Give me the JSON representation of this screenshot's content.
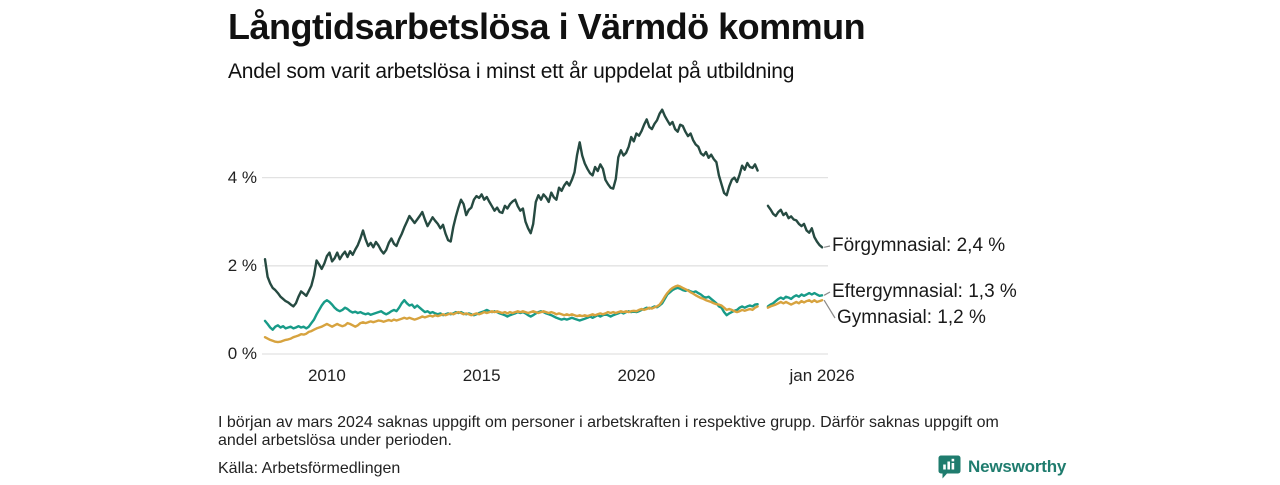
{
  "title": "Långtidsarbetslösa i Värmdö kommun",
  "subtitle": "Andel som varit arbetslösa i minst ett år uppdelat på utbildning",
  "footnote_line1": "I början av mars 2024 saknas uppgift om personer i arbetskraften i respektive grupp. Därför saknas uppgift om",
  "footnote_line2": "andel arbetslösa under perioden.",
  "source": "Källa: Arbetsförmedlingen",
  "brand": {
    "name": "Newsworthy",
    "color": "#1f7c6e",
    "icon": "newsworthy-speech-bubble-bar-chart-icon"
  },
  "chart_data": {
    "type": "line",
    "title": "Långtidsarbetslösa i Värmdö kommun",
    "subtitle": "Andel som varit arbetslösa i minst ett år uppdelat på utbildning",
    "unit": "%",
    "x_start_year": 2008.0,
    "x_step_years": 0.0833333,
    "x_end_year": 2026.0,
    "xlim": [
      2008.0,
      2026.2
    ],
    "ylim": [
      0,
      5.8
    ],
    "grid": true,
    "gridline_color": "#e2e2e2",
    "connector_color": "#8a8a8a",
    "xticks": [
      {
        "year": 2010,
        "label": "2010"
      },
      {
        "year": 2015,
        "label": "2015"
      },
      {
        "year": 2020,
        "label": "2020"
      },
      {
        "year": 2026,
        "label": "jan 2026"
      }
    ],
    "yticks": [
      {
        "value": 0,
        "label": "0 %"
      },
      {
        "value": 2,
        "label": "2 %"
      },
      {
        "value": 4,
        "label": "4 %"
      }
    ],
    "data_gap_note": "values missing Jan–Mar 2024 (nulls)",
    "series": [
      {
        "name": "Förgymnasial",
        "end_label": "Förgymnasial: 2,4 %",
        "end_value_text": "2,4 %",
        "color": "#264a41",
        "values": [
          2.15,
          1.75,
          1.6,
          1.5,
          1.45,
          1.38,
          1.3,
          1.25,
          1.2,
          1.17,
          1.12,
          1.08,
          1.15,
          1.3,
          1.42,
          1.37,
          1.32,
          1.43,
          1.55,
          1.78,
          2.12,
          2.03,
          1.93,
          2.05,
          2.22,
          2.3,
          2.1,
          2.17,
          2.3,
          2.15,
          2.25,
          2.32,
          2.2,
          2.33,
          2.25,
          2.37,
          2.47,
          2.62,
          2.8,
          2.6,
          2.45,
          2.52,
          2.42,
          2.54,
          2.46,
          2.35,
          2.28,
          2.36,
          2.52,
          2.62,
          2.5,
          2.45,
          2.6,
          2.72,
          2.87,
          3.0,
          3.13,
          3.05,
          2.97,
          3.05,
          3.13,
          3.22,
          3.05,
          2.9,
          3.0,
          3.1,
          3.02,
          2.95,
          2.85,
          2.93,
          2.73,
          2.58,
          2.55,
          2.88,
          3.12,
          3.32,
          3.5,
          3.4,
          3.15,
          3.27,
          3.32,
          3.5,
          3.58,
          3.54,
          3.62,
          3.5,
          3.56,
          3.45,
          3.35,
          3.25,
          3.32,
          3.22,
          3.2,
          3.36,
          3.3,
          3.4,
          3.46,
          3.5,
          3.35,
          3.25,
          3.3,
          3.0,
          2.85,
          2.74,
          2.95,
          3.45,
          3.6,
          3.5,
          3.62,
          3.55,
          3.45,
          3.66,
          3.55,
          3.5,
          3.77,
          3.7,
          3.82,
          3.9,
          3.82,
          3.95,
          4.12,
          4.52,
          4.8,
          4.5,
          4.32,
          4.2,
          4.1,
          4.05,
          4.24,
          4.15,
          4.3,
          4.2,
          3.95,
          3.85,
          3.77,
          3.75,
          3.97,
          4.46,
          4.62,
          4.5,
          4.56,
          4.7,
          4.92,
          4.82,
          5.0,
          4.95,
          5.06,
          5.2,
          5.32,
          5.15,
          5.1,
          5.22,
          5.3,
          5.45,
          5.54,
          5.4,
          5.3,
          5.2,
          5.26,
          5.1,
          5.04,
          5.2,
          5.17,
          5.04,
          4.94,
          5.0,
          4.85,
          4.75,
          4.7,
          4.55,
          4.5,
          4.58,
          4.45,
          4.52,
          4.42,
          4.35,
          4.05,
          3.85,
          3.65,
          3.6,
          3.8,
          3.95,
          4.0,
          3.9,
          4.07,
          4.27,
          4.18,
          4.33,
          4.24,
          4.22,
          4.3,
          4.16,
          null,
          null,
          null,
          3.36,
          3.28,
          3.18,
          3.13,
          3.22,
          3.27,
          3.15,
          3.2,
          3.08,
          3.12,
          3.05,
          3.03,
          2.95,
          2.9,
          2.95,
          2.8,
          2.75,
          2.85,
          2.65,
          2.55,
          2.47,
          2.42
        ]
      },
      {
        "name": "Eftergymnasial",
        "end_label": "Eftergymnasial: 1,3 %",
        "end_value_text": "1,3 %",
        "color": "#189b88",
        "values": [
          0.75,
          0.68,
          0.6,
          0.55,
          0.62,
          0.65,
          0.6,
          0.63,
          0.58,
          0.6,
          0.62,
          0.58,
          0.6,
          0.63,
          0.6,
          0.62,
          0.58,
          0.62,
          0.7,
          0.78,
          0.9,
          1.0,
          1.1,
          1.18,
          1.22,
          1.18,
          1.12,
          1.05,
          1.0,
          0.97,
          1.0,
          1.05,
          1.02,
          0.97,
          0.94,
          0.96,
          0.93,
          0.95,
          0.92,
          0.9,
          0.92,
          0.89,
          0.91,
          0.93,
          0.95,
          0.97,
          0.93,
          0.9,
          0.93,
          0.97,
          1.0,
          0.97,
          1.05,
          1.15,
          1.22,
          1.15,
          1.1,
          1.12,
          1.05,
          1.1,
          1.05,
          1.0,
          0.95,
          0.97,
          0.93,
          0.95,
          0.92,
          0.9,
          0.92,
          0.88,
          0.9,
          0.92,
          0.9,
          0.92,
          0.95,
          0.93,
          0.95,
          0.92,
          0.9,
          0.92,
          0.9,
          0.88,
          0.9,
          0.93,
          0.95,
          0.97,
          1.0,
          0.97,
          0.95,
          0.97,
          0.95,
          0.92,
          0.9,
          0.88,
          0.85,
          0.88,
          0.9,
          0.92,
          0.95,
          0.93,
          0.95,
          0.92,
          0.88,
          0.85,
          0.88,
          0.92,
          0.95,
          0.97,
          0.95,
          0.92,
          0.9,
          0.88,
          0.85,
          0.82,
          0.8,
          0.78,
          0.8,
          0.78,
          0.8,
          0.82,
          0.8,
          0.78,
          0.76,
          0.78,
          0.8,
          0.82,
          0.85,
          0.82,
          0.85,
          0.88,
          0.85,
          0.88,
          0.9,
          0.88,
          0.85,
          0.88,
          0.9,
          0.92,
          0.95,
          0.92,
          0.95,
          0.97,
          0.95,
          0.97,
          0.95,
          0.97,
          1.0,
          1.02,
          1.05,
          1.03,
          1.05,
          1.08,
          1.06,
          1.1,
          1.15,
          1.25,
          1.35,
          1.4,
          1.45,
          1.48,
          1.5,
          1.48,
          1.45,
          1.43,
          1.45,
          1.42,
          1.4,
          1.42,
          1.38,
          1.35,
          1.3,
          1.28,
          1.3,
          1.25,
          1.2,
          1.15,
          1.08,
          1.05,
          0.95,
          0.88,
          0.92,
          0.95,
          0.98,
          1.0,
          1.05,
          1.08,
          1.05,
          1.08,
          1.1,
          1.08,
          1.12,
          1.13,
          null,
          null,
          null,
          1.08,
          1.12,
          1.15,
          1.2,
          1.25,
          1.28,
          1.25,
          1.3,
          1.28,
          1.25,
          1.3,
          1.33,
          1.3,
          1.35,
          1.32,
          1.35,
          1.38,
          1.35,
          1.38,
          1.35,
          1.32,
          1.33
        ]
      },
      {
        "name": "Gymnasial",
        "end_label": "Gymnasial: 1,2 %",
        "end_value_text": "1,2 %",
        "color": "#d7a33f",
        "values": [
          0.38,
          0.35,
          0.32,
          0.3,
          0.28,
          0.27,
          0.28,
          0.3,
          0.32,
          0.33,
          0.35,
          0.38,
          0.4,
          0.42,
          0.45,
          0.44,
          0.46,
          0.5,
          0.52,
          0.55,
          0.58,
          0.6,
          0.62,
          0.65,
          0.68,
          0.65,
          0.62,
          0.65,
          0.68,
          0.65,
          0.63,
          0.65,
          0.7,
          0.68,
          0.65,
          0.62,
          0.65,
          0.7,
          0.72,
          0.7,
          0.72,
          0.74,
          0.72,
          0.74,
          0.76,
          0.75,
          0.73,
          0.75,
          0.77,
          0.75,
          0.78,
          0.76,
          0.78,
          0.8,
          0.82,
          0.8,
          0.82,
          0.8,
          0.78,
          0.8,
          0.82,
          0.85,
          0.83,
          0.85,
          0.87,
          0.85,
          0.88,
          0.86,
          0.88,
          0.9,
          0.88,
          0.9,
          0.92,
          0.9,
          0.93,
          0.95,
          0.93,
          0.9,
          0.92,
          0.9,
          0.88,
          0.9,
          0.92,
          0.9,
          0.92,
          0.95,
          0.93,
          0.95,
          0.97,
          0.95,
          0.97,
          0.95,
          0.93,
          0.95,
          0.92,
          0.95,
          0.93,
          0.95,
          0.97,
          0.95,
          0.97,
          0.95,
          0.93,
          0.95,
          0.97,
          0.95,
          0.93,
          0.95,
          0.97,
          0.95,
          0.93,
          0.95,
          0.93,
          0.9,
          0.92,
          0.9,
          0.88,
          0.9,
          0.88,
          0.9,
          0.88,
          0.86,
          0.88,
          0.86,
          0.88,
          0.86,
          0.88,
          0.9,
          0.88,
          0.9,
          0.92,
          0.9,
          0.92,
          0.95,
          0.93,
          0.95,
          0.93,
          0.95,
          0.97,
          0.95,
          0.97,
          0.95,
          0.97,
          0.98,
          0.97,
          1.0,
          1.02,
          1.0,
          1.02,
          1.05,
          1.03,
          1.06,
          1.08,
          1.12,
          1.2,
          1.3,
          1.38,
          1.45,
          1.5,
          1.53,
          1.55,
          1.53,
          1.5,
          1.47,
          1.44,
          1.4,
          1.37,
          1.33,
          1.3,
          1.27,
          1.25,
          1.22,
          1.2,
          1.18,
          1.15,
          1.13,
          1.12,
          1.1,
          1.05,
          1.0,
          1.02,
          1.0,
          0.97,
          0.95,
          0.97,
          1.0,
          0.98,
          1.0,
          1.02,
          1.0,
          1.05,
          1.08,
          null,
          null,
          null,
          1.05,
          1.08,
          1.1,
          1.12,
          1.15,
          1.18,
          1.15,
          1.18,
          1.15,
          1.12,
          1.15,
          1.18,
          1.15,
          1.2,
          1.17,
          1.2,
          1.22,
          1.18,
          1.22,
          1.18,
          1.2,
          1.22
        ]
      }
    ]
  }
}
